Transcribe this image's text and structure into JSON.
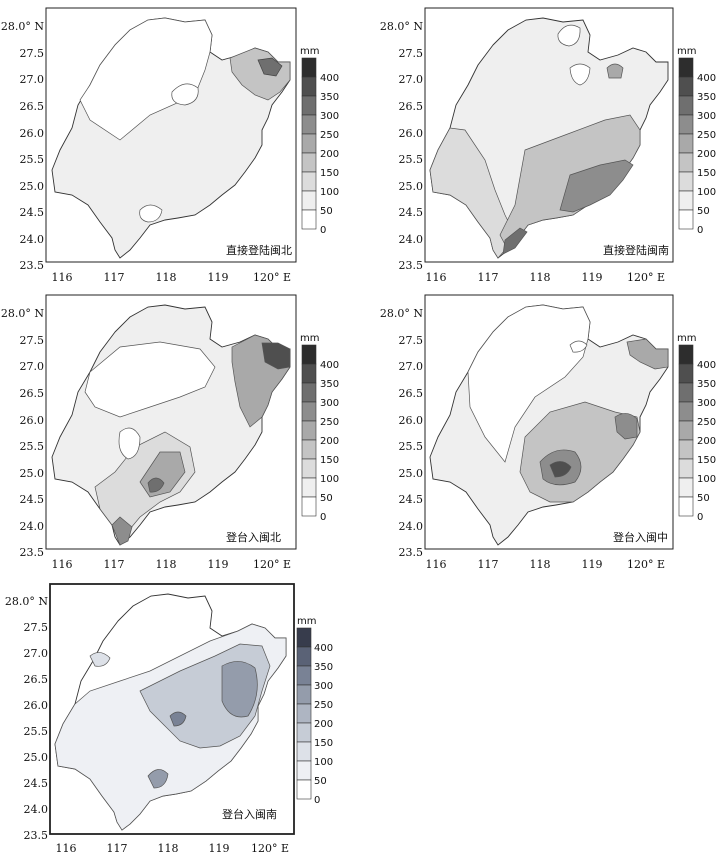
{
  "colors": {
    "frame": "#222222",
    "outline": "#333333",
    "levels": [
      "#ffffff",
      "#efefef",
      "#dcdcdc",
      "#c4c4c4",
      "#a9a9a9",
      "#8d8d8d",
      "#6f6f6f",
      "#4f4f4f",
      "#2d2d2d"
    ],
    "levels_blue": [
      "#ffffff",
      "#eef0f4",
      "#dde1e8",
      "#c6ccd6",
      "#aeb5c2",
      "#949cab",
      "#798295",
      "#5a6276",
      "#373c4c"
    ]
  },
  "axes": {
    "x_ticks": [
      "116",
      "117",
      "118",
      "119",
      "120° E"
    ],
    "y_ticks": [
      "28.0° N",
      "27.5",
      "27.0",
      "26.5",
      "26.0",
      "25.5",
      "25.0",
      "24.5",
      "24.0",
      "23.5"
    ]
  },
  "legend": {
    "unit": "mm",
    "labels": [
      "400",
      "350",
      "300",
      "250",
      "200",
      "150",
      "100",
      "50",
      "0"
    ]
  },
  "panels": [
    {
      "title": "直接登陆闽北"
    },
    {
      "title": "直接登陆闽南"
    },
    {
      "title": "登台入闽北"
    },
    {
      "title": "登台入闽中"
    },
    {
      "title": "登台入闽南"
    }
  ]
}
